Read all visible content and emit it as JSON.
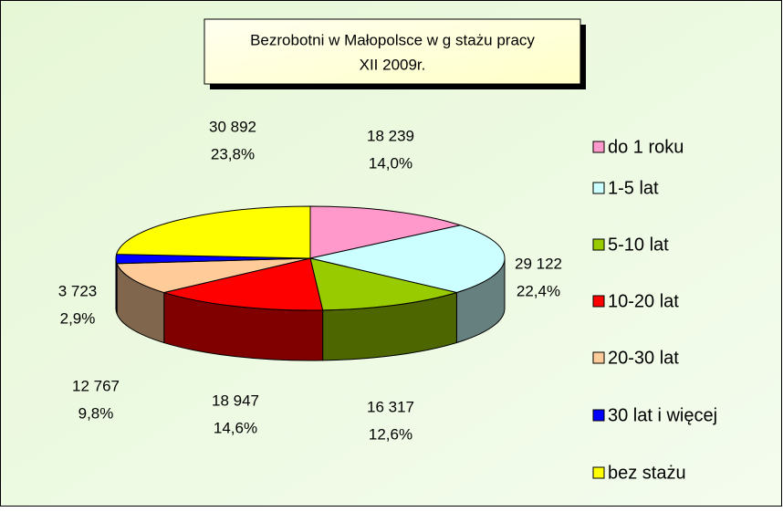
{
  "chart_data": {
    "type": "pie3d",
    "title": "Bezrobotni w  Małopolsce w g stażu pracy",
    "subtitle": "XII 2009r.",
    "categories": [
      "do 1 roku",
      "1-5 lat",
      "5-10 lat",
      "10-20 lat",
      "20-30 lat",
      "30 lat i więcej",
      "bez stażu"
    ],
    "values": [
      18239,
      29122,
      16317,
      18947,
      12767,
      3723,
      30892
    ],
    "value_labels": [
      "18 239",
      "29 122",
      "16 317",
      "18 947",
      "12 767",
      "3 723",
      "30 892"
    ],
    "percent_labels": [
      "14,0%",
      "22,4%",
      "12,6%",
      "14,6%",
      "9,8%",
      "2,9%",
      "23,8%"
    ],
    "colors": [
      "#ff99cc",
      "#ccffff",
      "#99cc00",
      "#ff0000",
      "#ffcc99",
      "#0000ff",
      "#ffff00"
    ],
    "legend": "right"
  }
}
